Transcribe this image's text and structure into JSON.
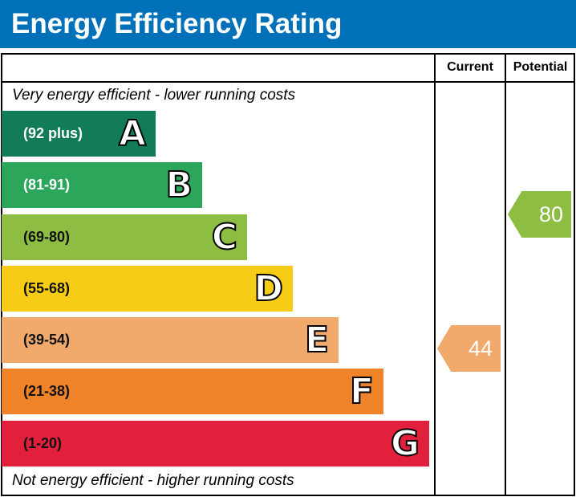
{
  "chart_data": {
    "type": "bar",
    "title": "Energy Efficiency Rating",
    "columns": [
      "Current",
      "Potential"
    ],
    "top_note": "Very energy efficient - lower running costs",
    "bottom_note": "Not energy efficient - higher running costs",
    "bands": [
      {
        "letter": "A",
        "range": "(92 plus)",
        "color": "#117c57"
      },
      {
        "letter": "B",
        "range": "(81-91)",
        "color": "#2ca65a"
      },
      {
        "letter": "C",
        "range": "(69-80)",
        "color": "#8dbe43"
      },
      {
        "letter": "D",
        "range": "(55-68)",
        "color": "#f6cc17"
      },
      {
        "letter": "E",
        "range": "(39-54)",
        "color": "#f2aa6c"
      },
      {
        "letter": "F",
        "range": "(21-38)",
        "color": "#ee8329"
      },
      {
        "letter": "G",
        "range": "(1-20)",
        "color": "#e2203c"
      }
    ],
    "current": {
      "value": "44",
      "band": "E",
      "color": "#f2aa6c"
    },
    "potential": {
      "value": "80",
      "band": "C",
      "color": "#8dbe43"
    }
  }
}
